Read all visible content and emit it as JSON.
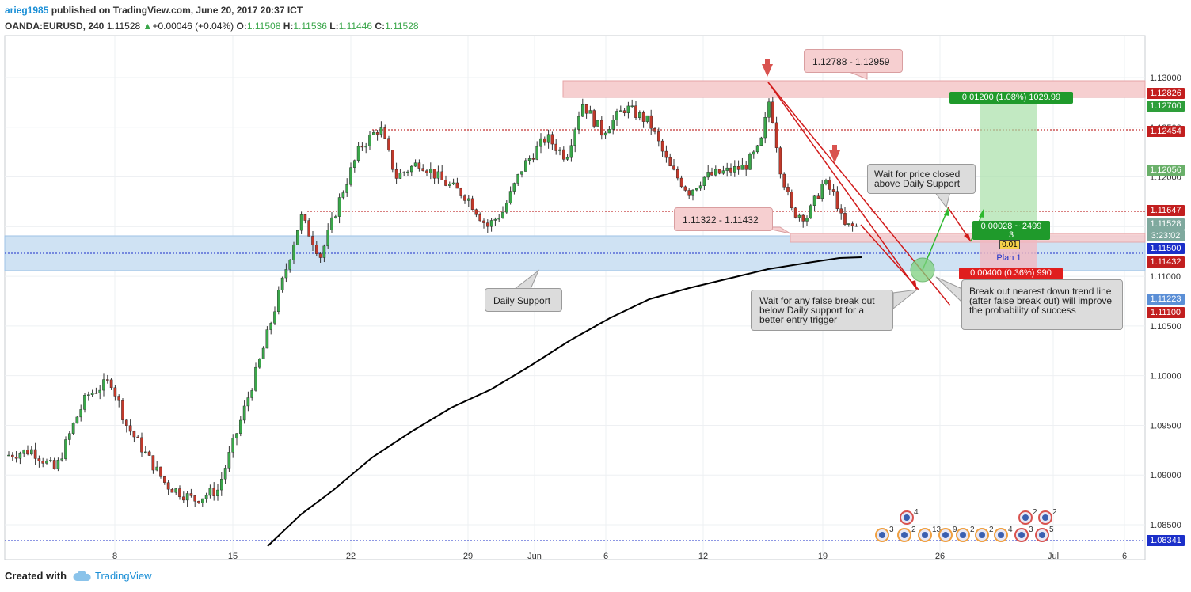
{
  "header": {
    "user": "arieg1985",
    "published": "published on TradingView.com, June 20, 2017 20:37 ICT",
    "symbol": "OANDA:EURUSD, 240",
    "last": "1.11528",
    "change": "+0.00046 (+0.04%)",
    "o_label": "O:",
    "o": "1.11508",
    "h_label": "H:",
    "h": "1.11536",
    "l_label": "L:",
    "l": "1.11446",
    "c_label": "C:",
    "c": "1.11528"
  },
  "footer": {
    "created_with": "Created with",
    "brand": "TradingView"
  },
  "annotations": {
    "top_zone": "1.12788 - 1.12959",
    "mid_zone": "1.11322 - 1.11432",
    "daily_support": "Daily Support",
    "wait_closed": "Wait for price closed above Daily Support",
    "wait_false": "Wait for any false break out below Daily support for a better entry trigger",
    "breakout": "Break out nearest down trend line (after false break out) will improve the probability of success",
    "target_box": "0.01200 (1.08%) 1029.99",
    "stop_box": "0.00400 (0.36%) 990",
    "entry_box": "0.00028 ~ 2499",
    "entry_box_sub": "3",
    "entry_val": "0.01",
    "plan": "Plan 1"
  },
  "colors": {
    "up": "#3aa64a",
    "down": "#c0392b",
    "grid": "#eef0f3",
    "support_zone": "#cfe2f3",
    "resistance_zone": "#f6cfd0",
    "ma": "#000000",
    "trend": "#d11a1a",
    "path": "#2eb82e"
  },
  "chart_data": {
    "type": "candlestick",
    "symbol": "OANDA:EURUSD",
    "timeframe": "240",
    "x_ticks": [
      "8",
      "15",
      "22",
      "29",
      "Jun",
      "6",
      "12",
      "19",
      "26",
      "Jul",
      "6"
    ],
    "y_ticks": [
      "1.13000",
      "1.12500",
      "1.12000",
      "1.11500",
      "1.11000",
      "1.10500",
      "1.10000",
      "1.09500",
      "1.09000",
      "1.08500"
    ],
    "ylim": [
      1.0825,
      1.1345
    ],
    "price_labels": [
      {
        "value": "1.12826",
        "color": "#c21f1f"
      },
      {
        "value": "1.12700",
        "color": "#2e9e3a"
      },
      {
        "value": "1.12454",
        "color": "#c21f1f"
      },
      {
        "value": "1.12056",
        "color": "#6ab06a"
      },
      {
        "value": "1.11647",
        "color": "#c21f1f"
      },
      {
        "value": "1.11528",
        "color": "#7fa99e"
      },
      {
        "value": "3:23:02",
        "color": "#7fa99e"
      },
      {
        "value": "1.11500",
        "color": "#1b2fc9"
      },
      {
        "value": "1.11432",
        "color": "#c21f1f"
      },
      {
        "value": "1.11223",
        "color": "#5b8fd6"
      },
      {
        "value": "1.11100",
        "color": "#c21f1f"
      },
      {
        "value": "1.08341",
        "color": "#1b2fc9"
      }
    ],
    "zones": [
      {
        "name": "resistance",
        "from": 1.12788,
        "to": 1.12959
      },
      {
        "name": "daily-support",
        "from": 1.1105,
        "to": 1.1142
      },
      {
        "name": "mid",
        "from": 1.11322,
        "to": 1.11432
      }
    ],
    "levels": [
      1.12454,
      1.11647,
      1.115,
      1.08341
    ]
  }
}
